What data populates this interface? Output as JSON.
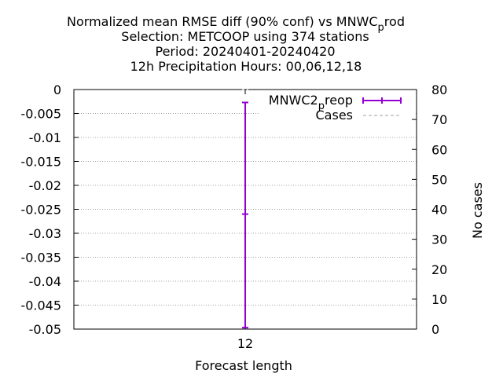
{
  "chart_data": {
    "type": "errorbar",
    "title_lines": [
      "Normalized mean RMSE diff (90% conf) vs MNWC",
      "Selection: METCOOP using   374 stations",
      "Period: 20240401-20240420",
      "12h Precipitation   Hours:  00,06,12,18"
    ],
    "title_sub_base": "p",
    "title_sub_tail": "rod",
    "xlabel": "Forecast length",
    "ylabel": "",
    "y2label": "No cases",
    "categories": [
      "12"
    ],
    "ylim": [
      -0.05,
      0
    ],
    "yticks": [
      "0",
      "-0.005",
      "-0.01",
      "-0.015",
      "-0.02",
      "-0.025",
      "-0.03",
      "-0.035",
      "-0.04",
      "-0.045",
      "-0.05"
    ],
    "y2lim": [
      0,
      80
    ],
    "y2ticks": [
      "80",
      "70",
      "60",
      "50",
      "40",
      "30",
      "20",
      "10",
      "0"
    ],
    "grid": true,
    "legend_position": "top-right",
    "series": [
      {
        "name": "MNWC2",
        "name_sub": "p",
        "name_tail": "reop",
        "color": "#9400d3",
        "x": [
          "12"
        ],
        "y": [
          -0.026
        ],
        "lower": [
          -0.0497
        ],
        "upper": [
          -0.0027
        ]
      }
    ],
    "cases_series": {
      "name": "Cases",
      "color": "#a0a0a0",
      "values": [
        80
      ]
    }
  }
}
